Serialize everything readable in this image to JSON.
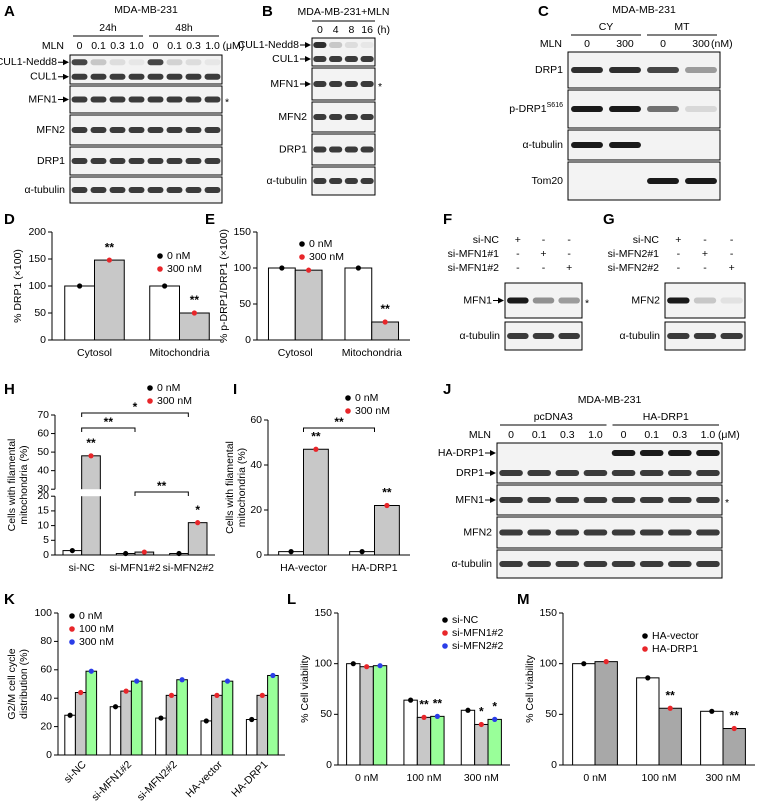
{
  "blots": [
    {
      "label": "A",
      "title": "MDA-MB-231",
      "groups": [
        "24h",
        "48h"
      ],
      "treatment": "MLN",
      "lanes": [
        "0",
        "0.1",
        "0.3",
        "1.0",
        "0",
        "0.1",
        "0.3",
        "1.0"
      ],
      "unit": "(μM)",
      "rows": [
        "CUL1-Nedd8",
        "CUL1",
        "MFN1",
        "MFN2",
        "DRP1",
        "α-tubulin"
      ],
      "marker": "*"
    },
    {
      "label": "B",
      "title": "MDA-MB-231+MLN",
      "lanes": [
        "0",
        "4",
        "8",
        "16"
      ],
      "unit": "(h)",
      "rows": [
        "CUL1-Nedd8",
        "CUL1",
        "MFN1",
        "MFN2",
        "DRP1",
        "α-tubulin"
      ],
      "marker": "*"
    },
    {
      "label": "C",
      "title": "MDA-MB-231",
      "groups": [
        "CY",
        "MT"
      ],
      "treatment": "MLN",
      "lanes": [
        "0",
        "300",
        "0",
        "300"
      ],
      "unit": "(nM)",
      "rows": [
        "DRP1",
        {
          "text": "p-DRP1",
          "sup": "S616"
        },
        "α-tubulin",
        "Tom20"
      ]
    },
    {
      "label": "F",
      "conditions": [
        "si-NC",
        "si-MFN1#1",
        "si-MFN1#2"
      ],
      "signs": [
        [
          "+",
          "-",
          "-"
        ],
        [
          "-",
          "+",
          "-"
        ],
        [
          "-",
          "-",
          "+"
        ]
      ],
      "rows": [
        "MFN1",
        "α-tubulin"
      ],
      "marker": "*"
    },
    {
      "label": "G",
      "conditions": [
        "si-NC",
        "si-MFN2#1",
        "si-MFN2#2"
      ],
      "signs": [
        [
          "+",
          "-",
          "-"
        ],
        [
          "-",
          "+",
          "-"
        ],
        [
          "-",
          "-",
          "+"
        ]
      ],
      "rows": [
        "MFN2",
        "α-tubulin"
      ]
    },
    {
      "label": "J",
      "title": "MDA-MB-231",
      "groups": [
        "pcDNA3",
        "HA-DRP1"
      ],
      "treatment": "MLN",
      "lanes": [
        "0",
        "0.1",
        "0.3",
        "1.0",
        "0",
        "0.1",
        "0.3",
        "1.0"
      ],
      "unit": "(μM)",
      "rows": [
        "HA-DRP1",
        "DRP1",
        "MFN1",
        "MFN2",
        "α-tubulin"
      ],
      "marker": "*"
    }
  ],
  "chart_data": [
    {
      "type": "bar",
      "panel": "D",
      "ylabel": "% DRP1 (×100)",
      "categories": [
        "Cytosol",
        "Mitochondria"
      ],
      "series": [
        {
          "name": "0 nM",
          "color": "#ffffff",
          "point_color": "#000000",
          "values": [
            100,
            100
          ]
        },
        {
          "name": "300 nM",
          "color": "#c8c8c8",
          "point_color": "#e8262a",
          "values": [
            148,
            50
          ],
          "annotations": [
            "**",
            "**"
          ]
        }
      ],
      "ylim": [
        0,
        200
      ],
      "yticks": [
        0,
        50,
        100,
        150,
        200
      ]
    },
    {
      "type": "bar",
      "panel": "E",
      "ylabel": "% p-DRP1/DRP1 (×100)",
      "categories": [
        "Cytosol",
        "Mitochondria"
      ],
      "series": [
        {
          "name": "0 nM",
          "color": "#ffffff",
          "point_color": "#000000",
          "values": [
            100,
            100
          ]
        },
        {
          "name": "300 nM",
          "color": "#c8c8c8",
          "point_color": "#e8262a",
          "values": [
            97,
            25
          ],
          "annotations": [
            null,
            "**"
          ]
        }
      ],
      "ylim": [
        0,
        150
      ],
      "yticks": [
        0,
        50,
        100,
        150
      ]
    },
    {
      "type": "bar",
      "panel": "H",
      "ylabel": [
        "Cells with filamental",
        "mitochondria (%)"
      ],
      "categories": [
        "si-NC",
        "si-MFN1#2",
        "si-MFN2#2"
      ],
      "series": [
        {
          "name": "0 nM",
          "color": "#ffffff",
          "point_color": "#000000",
          "values": [
            1.5,
            0.5,
            0.5
          ]
        },
        {
          "name": "300 nM",
          "color": "#c8c8c8",
          "point_color": "#e8262a",
          "values": [
            48,
            1,
            11
          ],
          "annotations": [
            "**",
            null,
            "*"
          ]
        }
      ],
      "ylim": [
        0,
        70
      ],
      "yticks": [
        0,
        5,
        10,
        15,
        20,
        30,
        40,
        50,
        60,
        70
      ],
      "axis_break": [
        20,
        30
      ],
      "comparisons": [
        {
          "label": "*",
          "from": "si-NC",
          "to": "si-MFN2#2"
        },
        {
          "label": "**",
          "from": "si-NC",
          "to": "si-MFN1#2"
        },
        {
          "label": "**",
          "from": "si-MFN1#2",
          "to": "si-MFN2#2"
        }
      ]
    },
    {
      "type": "bar",
      "panel": "I",
      "ylabel": [
        "Cells with filamental",
        "mitochondria (%)"
      ],
      "categories": [
        "HA-vector",
        "HA-DRP1"
      ],
      "series": [
        {
          "name": "0 nM",
          "color": "#ffffff",
          "point_color": "#000000",
          "values": [
            1.5,
            1.5
          ]
        },
        {
          "name": "300 nM",
          "color": "#c8c8c8",
          "point_color": "#e8262a",
          "values": [
            47,
            22
          ],
          "annotations": [
            "**",
            "**"
          ]
        }
      ],
      "ylim": [
        0,
        60
      ],
      "yticks": [
        0,
        20,
        40,
        60
      ],
      "comparisons": [
        {
          "label": "**",
          "from": "HA-vector",
          "to": "HA-DRP1"
        }
      ]
    },
    {
      "type": "bar",
      "panel": "K",
      "ylabel": [
        "G2/M cell cycle",
        "distribution (%)"
      ],
      "categories": [
        "si-NC",
        "si-MFN1#2",
        "si-MFN2#2",
        "HA-vector",
        "HA-DRP1"
      ],
      "series": [
        {
          "name": "0 nM",
          "color": "#ffffff",
          "point_color": "#000000",
          "values": [
            28,
            34,
            26,
            24,
            25
          ]
        },
        {
          "name": "100 nM",
          "color": "#c8c8c8",
          "point_color": "#e8262a",
          "values": [
            44,
            45,
            42,
            42,
            42
          ]
        },
        {
          "name": "300 nM",
          "color": "#99ff99",
          "point_color": "#2a3de8",
          "values": [
            59,
            52,
            53,
            52,
            56
          ]
        }
      ],
      "ylim": [
        0,
        100
      ],
      "yticks": [
        0,
        20,
        40,
        60,
        80,
        100
      ]
    },
    {
      "type": "bar",
      "panel": "L",
      "ylabel": "% Cell viability",
      "categories": [
        "0 nM",
        "100 nM",
        "300 nM"
      ],
      "series": [
        {
          "name": "si-NC",
          "color": "#ffffff",
          "point_color": "#000000",
          "values": [
            100,
            64,
            54
          ]
        },
        {
          "name": "si-MFN1#2",
          "color": "#c8c8c8",
          "point_color": "#e8262a",
          "values": [
            97,
            47,
            40
          ],
          "annotations": [
            null,
            "**",
            "*"
          ]
        },
        {
          "name": "si-MFN2#2",
          "color": "#99ff99",
          "point_color": "#2a3de8",
          "values": [
            98,
            48,
            45
          ],
          "annotations": [
            null,
            "**",
            "*"
          ]
        }
      ],
      "ylim": [
        0,
        150
      ],
      "yticks": [
        0,
        50,
        100,
        150
      ]
    },
    {
      "type": "bar",
      "panel": "M",
      "ylabel": "% Cell viability",
      "categories": [
        "0 nM",
        "100 nM",
        "300 nM"
      ],
      "series": [
        {
          "name": "HA-vector",
          "color": "#ffffff",
          "point_color": "#000000",
          "values": [
            100,
            86,
            53
          ]
        },
        {
          "name": "HA-DRP1",
          "color": "#a8a8a8",
          "point_color": "#e8262a",
          "values": [
            102,
            56,
            36
          ],
          "annotations": [
            null,
            "**",
            "**"
          ]
        }
      ],
      "ylim": [
        0,
        150
      ],
      "yticks": [
        0,
        50,
        100,
        150
      ]
    }
  ]
}
